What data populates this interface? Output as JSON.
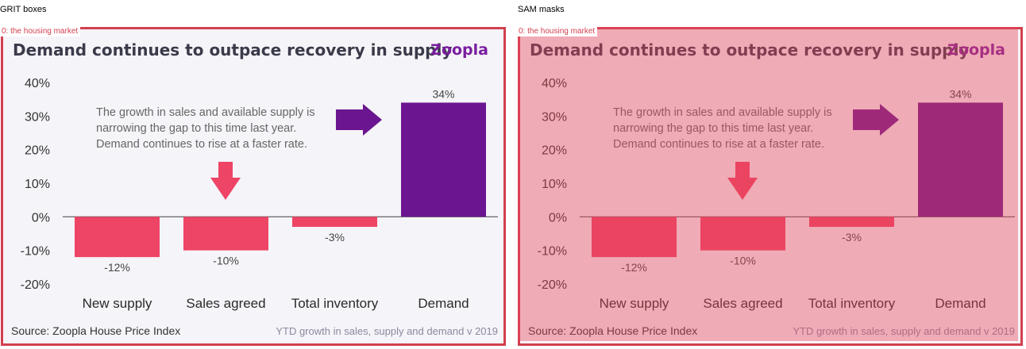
{
  "panels": [
    {
      "label": "GRIT boxes",
      "tag": "0: the housing market",
      "overlay": false
    },
    {
      "label": "SAM masks",
      "tag": "0: the housing market",
      "overlay": true
    }
  ],
  "chart": {
    "title": "Demand continues to outpace recovery in supply",
    "logo": "Zoopla",
    "annotation": [
      "The growth in sales and available supply is",
      "narrowing the gap to this time last year.",
      "Demand continues to rise at a faster rate."
    ],
    "source": "Source: Zoopla House Price Index",
    "caption": "YTD growth in sales, supply and demand v 2019"
  },
  "colors": {
    "negative": "#ee4466",
    "positive": "#6b1590",
    "arrow_down": "#ee4466",
    "arrow_right": "#6b1590",
    "border": "#d2404f"
  },
  "chart_data": {
    "type": "bar",
    "categories": [
      "New supply",
      "Sales agreed",
      "Total inventory",
      "Demand"
    ],
    "values": [
      -12,
      -10,
      -3,
      34
    ],
    "value_labels": [
      "-12%",
      "-10%",
      "-3%",
      "34%"
    ],
    "ylim": [
      -20,
      40
    ],
    "yticks": [
      40,
      30,
      20,
      10,
      0,
      -10,
      -20
    ],
    "ytick_labels": [
      "40%",
      "30%",
      "20%",
      "10%",
      "0%",
      "-10%",
      "-20%"
    ],
    "grid": false,
    "title": "Demand continues to outpace recovery in supply"
  }
}
